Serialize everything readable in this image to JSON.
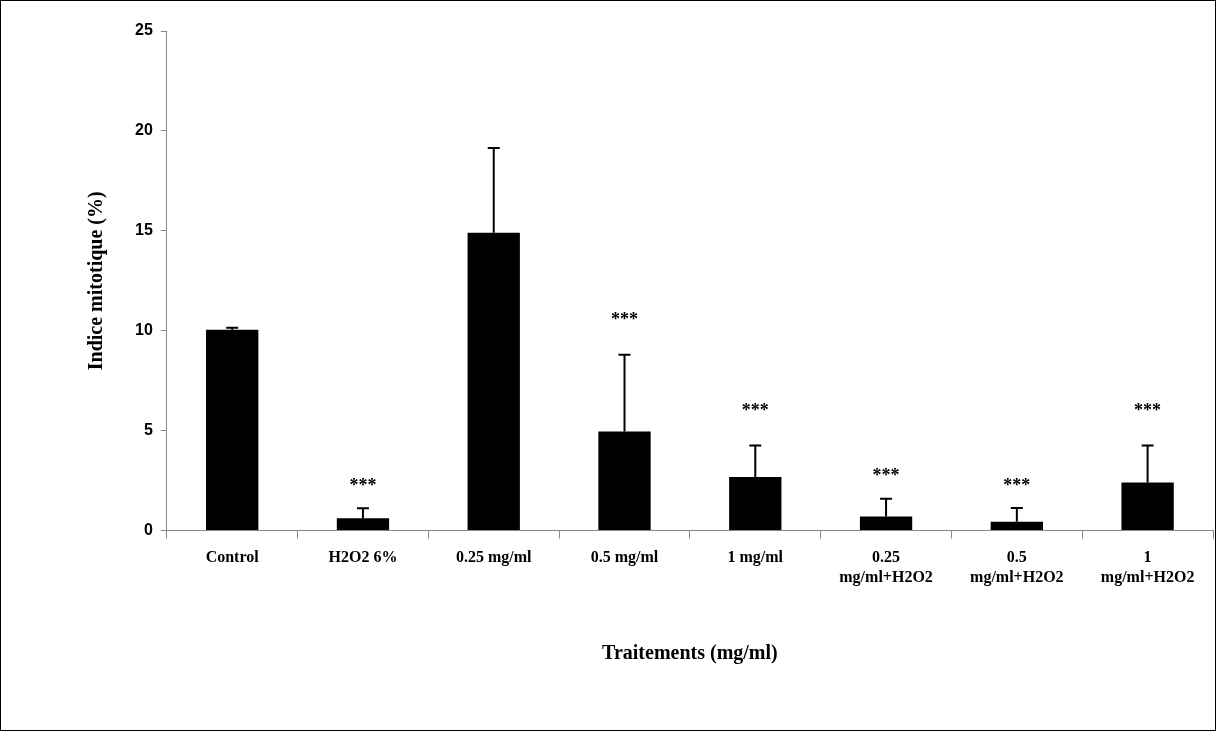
{
  "chart_data": {
    "type": "bar",
    "xlabel": "Traitements (mg/ml)",
    "ylabel": "Indice mitotique (%)",
    "categories": [
      "Control",
      "H2O2 6%",
      "0.25 mg/ml",
      "0.5 mg/ml",
      "1 mg/ml",
      "0.25 mg/ml+H2O2",
      "0.5 mg/ml+H2O2",
      "1 mg/ml+H2O2"
    ],
    "values": [
      10.05,
      0.62,
      14.9,
      4.96,
      2.68,
      0.7,
      0.44,
      2.41
    ],
    "errors": [
      [
        10.05,
        10.15
      ],
      [
        0.62,
        1.12
      ],
      [
        14.9,
        19.15
      ],
      [
        4.96,
        8.8
      ],
      [
        2.68,
        4.26
      ],
      [
        0.7,
        1.6
      ],
      [
        0.44,
        1.13
      ],
      [
        2.41,
        4.26
      ]
    ],
    "color": "#000000",
    "ylim": [
      0,
      25
    ],
    "yticks": [
      0,
      5,
      10,
      15,
      20,
      25
    ],
    "grid": false,
    "legend": false,
    "annotations": [
      {
        "text": "***",
        "x": "H2O2 6%",
        "y": 1.12
      },
      {
        "text": "***",
        "x": "0.5 mg/ml",
        "y": 8.8
      },
      {
        "text": "***",
        "x": "1 mg/ml",
        "y": 4.26
      },
      {
        "text": "***",
        "x": "0.25 mg/ml+H2O2",
        "y": 1.6
      },
      {
        "text": "***",
        "x": "0.5 mg/ml+H2O2",
        "y": 1.13
      },
      {
        "text": "***",
        "x": "1 mg/ml+H2O2",
        "y": 4.26
      }
    ]
  }
}
